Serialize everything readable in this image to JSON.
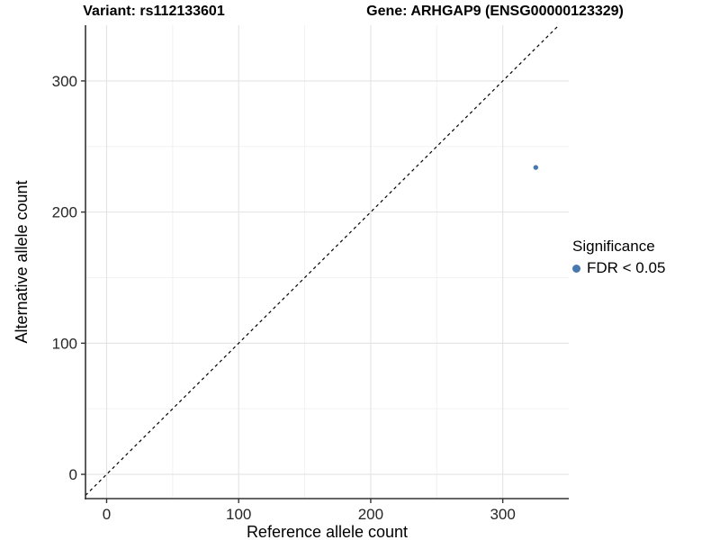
{
  "header": {
    "variant_title": "Variant: rs112133601",
    "gene_title": "Gene: ARHGAP9 (ENSG00000123329)"
  },
  "chart_data": {
    "type": "scatter",
    "title": "",
    "xlabel": "Reference allele count",
    "ylabel": "Alternative allele count",
    "xlim": [
      -16,
      350
    ],
    "ylim": [
      -18.5,
      342.5
    ],
    "x_ticks": [
      0,
      100,
      200,
      300
    ],
    "y_ticks": [
      0,
      100,
      200,
      300
    ],
    "x_minor_gridlines": [
      50,
      150,
      250
    ],
    "y_minor_gridlines": [
      50,
      150,
      250
    ],
    "grid": "on",
    "identity_line": {
      "type": "y=x",
      "style": "dashed",
      "color": "#000000"
    },
    "series": [
      {
        "name": "FDR < 0.05",
        "color": "#4878ad",
        "points": [
          {
            "x": 325,
            "y": 234
          }
        ]
      }
    ],
    "legend": {
      "title": "Significance",
      "position": "right",
      "entries": [
        {
          "label": "FDR < 0.05",
          "color": "#4878ad",
          "marker": "circle"
        }
      ]
    }
  },
  "style": {
    "point_color": "#4878ad",
    "axis_line_color": "#333333",
    "tick_color": "#333333",
    "tick_label_color": "#262626",
    "axis_title_color": "#000000",
    "major_grid_color": "#e3e3e3",
    "minor_grid_color": "#f0f0f0",
    "panel_background": "#ffffff"
  }
}
